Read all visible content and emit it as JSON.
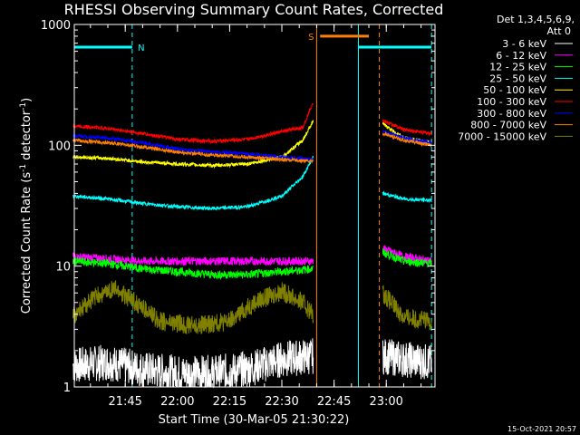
{
  "chart_data": {
    "type": "line",
    "title": "RHESSI Observing Summary Count Rates, Corrected",
    "xlabel": "Start Time (30-Mar-05 21:30:22)",
    "ylabel_main": "Corrected Count Rate (s",
    "ylabel_sup1": "-1",
    "ylabel_mid": " detector",
    "ylabel_sup2": "-1",
    "ylabel_end": ")",
    "yscale": "log",
    "ylim": [
      1,
      1000
    ],
    "xlim": [
      "21:30:22",
      "23:14"
    ],
    "x_ticks": [
      "21:45",
      "22:00",
      "22:15",
      "22:30",
      "22:45",
      "23:00"
    ],
    "y_ticks": [
      "1",
      "10",
      "100",
      "1000"
    ],
    "legend_header": [
      "Det 1,3,4,5,6,9,",
      "Att 0"
    ],
    "legend_position": "right",
    "timestamp": "15-Oct-2021 20:57",
    "flags": [
      {
        "letter": "N",
        "color": "#00ffff",
        "label_at": "21:47"
      },
      {
        "letter": "S",
        "color": "#ff8000",
        "label_at": "22:41"
      }
    ],
    "flag_segments": [
      {
        "color": "#00ffff",
        "start": "21:30:22",
        "end": "21:47",
        "level": 650
      },
      {
        "color": "#ff8000",
        "start": "22:41",
        "end": "22:55",
        "level": 800
      },
      {
        "color": "#00ffff",
        "start": "22:52",
        "end": "23:13",
        "level": 650
      }
    ],
    "vertical_lines": [
      {
        "time": "21:30:22",
        "color": "#00ffff",
        "style": "solid"
      },
      {
        "time": "21:47",
        "color": "#00ffff",
        "style": "dashed"
      },
      {
        "time": "22:40",
        "color": "#ff8000",
        "style": "solid"
      },
      {
        "time": "22:52",
        "color": "#00ffff",
        "style": "solid"
      },
      {
        "time": "22:58",
        "color": "#ff8000",
        "style": "dashed"
      },
      {
        "time": "23:13",
        "color": "#00ffff",
        "style": "dashed"
      }
    ],
    "gap": [
      "22:40",
      "22:58"
    ],
    "series": [
      {
        "name": "3 - 6 keV",
        "color": "#ffffff",
        "pre": [
          [
            "21:30",
            1.5
          ],
          [
            "21:40",
            1.6
          ],
          [
            "21:50",
            1.4
          ],
          [
            "22:00",
            1.3
          ],
          [
            "22:10",
            1.3
          ],
          [
            "22:20",
            1.4
          ],
          [
            "22:30",
            1.7
          ],
          [
            "22:39",
            1.8
          ]
        ],
        "post": [
          [
            "22:59",
            1.8
          ],
          [
            "23:05",
            1.7
          ],
          [
            "23:13",
            1.6
          ]
        ]
      },
      {
        "name": "6 - 12 keV",
        "color": "#ff00ff",
        "pre": [
          [
            "21:30",
            12
          ],
          [
            "21:40",
            11.5
          ],
          [
            "21:50",
            11
          ],
          [
            "22:00",
            11
          ],
          [
            "22:10",
            11
          ],
          [
            "22:20",
            11
          ],
          [
            "22:30",
            11
          ],
          [
            "22:39",
            11
          ]
        ],
        "post": [
          [
            "22:59",
            14
          ],
          [
            "23:05",
            12
          ],
          [
            "23:13",
            11
          ]
        ]
      },
      {
        "name": "12 - 25 keV",
        "color": "#00ff00",
        "pre": [
          [
            "21:30",
            11
          ],
          [
            "21:40",
            10.5
          ],
          [
            "21:50",
            9.5
          ],
          [
            "22:00",
            9
          ],
          [
            "22:10",
            8.5
          ],
          [
            "22:20",
            8.5
          ],
          [
            "22:30",
            9
          ],
          [
            "22:39",
            9.5
          ]
        ],
        "post": [
          [
            "22:59",
            13
          ],
          [
            "23:05",
            11
          ],
          [
            "23:13",
            10.5
          ]
        ]
      },
      {
        "name": "25 - 50 keV",
        "color": "#00ffff",
        "pre": [
          [
            "21:30",
            38
          ],
          [
            "21:40",
            36
          ],
          [
            "21:50",
            33
          ],
          [
            "22:00",
            31
          ],
          [
            "22:10",
            30
          ],
          [
            "22:20",
            31
          ],
          [
            "22:30",
            38
          ],
          [
            "22:36",
            55
          ],
          [
            "22:39",
            80
          ]
        ],
        "post": [
          [
            "22:59",
            40
          ],
          [
            "23:05",
            36
          ],
          [
            "23:13",
            35
          ]
        ]
      },
      {
        "name": "50 - 100 keV",
        "color": "#ffff00",
        "pre": [
          [
            "21:30",
            80
          ],
          [
            "21:40",
            78
          ],
          [
            "21:50",
            73
          ],
          [
            "22:00",
            70
          ],
          [
            "22:10",
            68
          ],
          [
            "22:20",
            70
          ],
          [
            "22:25",
            75
          ],
          [
            "22:30",
            80
          ],
          [
            "22:36",
            110
          ],
          [
            "22:39",
            160
          ]
        ],
        "post": [
          [
            "22:59",
            150
          ],
          [
            "23:05",
            115
          ],
          [
            "23:13",
            105
          ]
        ]
      },
      {
        "name": "100 - 300 keV",
        "color": "#ff0000",
        "pre": [
          [
            "21:30",
            145
          ],
          [
            "21:40",
            138
          ],
          [
            "21:50",
            125
          ],
          [
            "22:00",
            112
          ],
          [
            "22:10",
            108
          ],
          [
            "22:20",
            112
          ],
          [
            "22:30",
            130
          ],
          [
            "22:36",
            140
          ],
          [
            "22:39",
            230
          ]
        ],
        "post": [
          [
            "22:59",
            160
          ],
          [
            "23:05",
            135
          ],
          [
            "23:13",
            125
          ]
        ]
      },
      {
        "name": "300 - 800 keV",
        "color": "#0000ff",
        "pre": [
          [
            "21:30",
            120
          ],
          [
            "21:40",
            115
          ],
          [
            "21:50",
            105
          ],
          [
            "22:00",
            93
          ],
          [
            "22:10",
            88
          ],
          [
            "22:20",
            85
          ],
          [
            "22:30",
            80
          ],
          [
            "22:39",
            76
          ]
        ],
        "post": [
          [
            "22:59",
            130
          ],
          [
            "23:05",
            115
          ],
          [
            "23:13",
            105
          ]
        ]
      },
      {
        "name": "800 - 7000 keV",
        "color": "#ff8000",
        "pre": [
          [
            "21:30",
            110
          ],
          [
            "21:40",
            105
          ],
          [
            "21:50",
            97
          ],
          [
            "22:00",
            88
          ],
          [
            "22:10",
            83
          ],
          [
            "22:20",
            80
          ],
          [
            "22:30",
            76
          ],
          [
            "22:39",
            74
          ]
        ],
        "post": [
          [
            "22:59",
            125
          ],
          [
            "23:05",
            110
          ],
          [
            "23:13",
            100
          ]
        ]
      },
      {
        "name": "7000 - 15000 keV",
        "color": "#808000",
        "pre": [
          [
            "21:30",
            3.8
          ],
          [
            "21:36",
            5.5
          ],
          [
            "21:42",
            6.5
          ],
          [
            "21:48",
            5
          ],
          [
            "21:55",
            3.5
          ],
          [
            "22:05",
            3.2
          ],
          [
            "22:15",
            3.5
          ],
          [
            "22:22",
            5
          ],
          [
            "22:30",
            6.2
          ],
          [
            "22:36",
            5
          ],
          [
            "22:39",
            4
          ]
        ],
        "post": [
          [
            "22:59",
            6
          ],
          [
            "23:05",
            3.8
          ],
          [
            "23:13",
            3.5
          ]
        ]
      }
    ]
  }
}
